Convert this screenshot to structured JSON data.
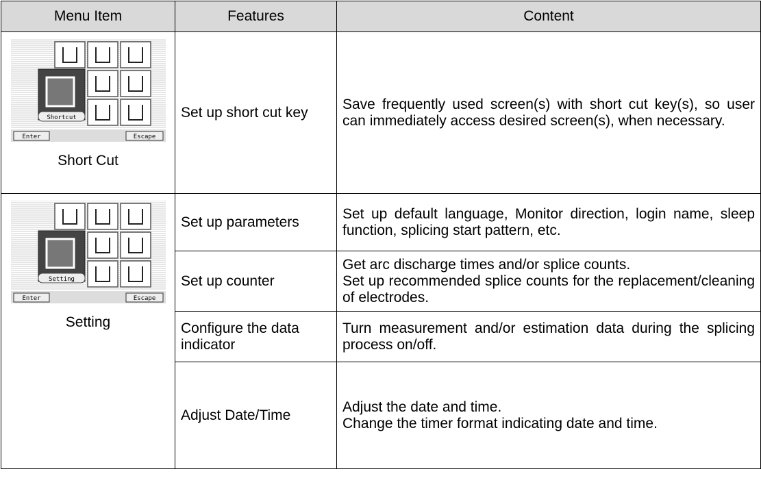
{
  "table": {
    "header": [
      "Menu Item",
      "Features",
      "Content"
    ],
    "groups": [
      {
        "menu": {
          "label": "Short Cut",
          "screen": {
            "caption": "Shortcut",
            "left_button": "Enter",
            "right_button": "Escape"
          }
        },
        "rows": [
          {
            "feature": "Set up short cut key",
            "content": [
              "Save frequently used screen(s) with short cut key(s), so user can immediately access desired screen(s), when necessary."
            ]
          }
        ]
      },
      {
        "menu": {
          "label": "Setting",
          "screen": {
            "caption": "Setting",
            "left_button": "Enter",
            "right_button": "Escape"
          }
        },
        "rows": [
          {
            "feature": "Set up parameters",
            "content": [
              "Set up default language, Monitor direction, login name, sleep function, splicing start pattern, etc."
            ]
          },
          {
            "feature": "Set up counter",
            "content": [
              "Get arc discharge times and/or splice counts.",
              "Set up recommended splice counts for the replacement/cleaning of electrodes."
            ]
          },
          {
            "feature": "Configure the data indicator",
            "content": [
              "Turn measurement and/or estimation data during the splicing process on/off."
            ]
          },
          {
            "feature": "Adjust Date/Time",
            "content": [
              "Adjust the date and time.",
              "Change the timer format indicating date and time."
            ]
          }
        ]
      }
    ]
  }
}
